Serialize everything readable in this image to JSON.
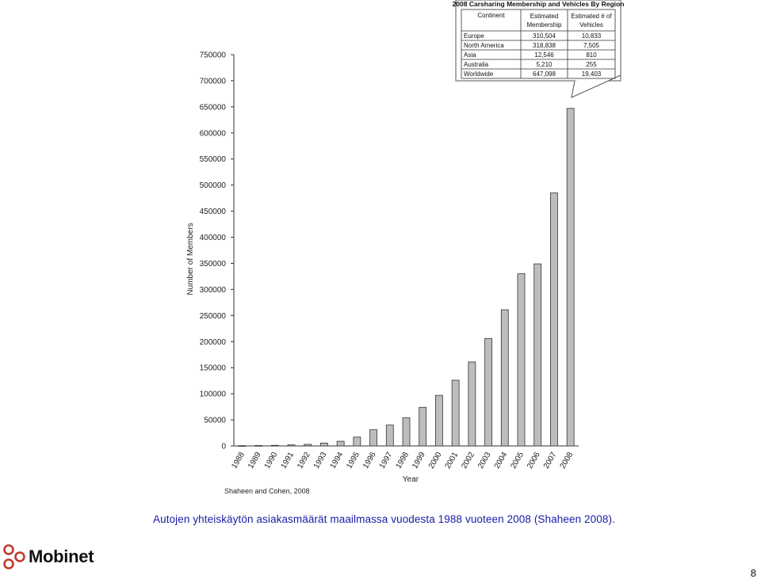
{
  "chart_data": {
    "type": "bar",
    "categories": [
      "1988",
      "1989",
      "1990",
      "1991",
      "1992",
      "1993",
      "1994",
      "1995",
      "1996",
      "1997",
      "1998",
      "1999",
      "2000",
      "2001",
      "2002",
      "2003",
      "2004",
      "2005",
      "2006",
      "2007",
      "2008"
    ],
    "values": [
      500,
      800,
      1200,
      2000,
      3000,
      5500,
      9000,
      17000,
      31000,
      40000,
      54000,
      74000,
      97000,
      126000,
      161000,
      206000,
      261000,
      330000,
      349000,
      485000,
      647098
    ],
    "xlabel": "Year",
    "ylabel": "Number of Members",
    "ylim": [
      0,
      750000
    ],
    "yticks": [
      0,
      50000,
      100000,
      150000,
      200000,
      250000,
      300000,
      350000,
      400000,
      450000,
      500000,
      550000,
      600000,
      650000,
      700000,
      750000
    ],
    "bar_color": "#bdbdbd",
    "source_note": "Shaheen and Cohen, 2008",
    "inset_table": {
      "title": "2008 Carsharing Membership and Vehicles By Region",
      "headers": [
        "Continent",
        "Estimated Membership",
        "Estimated # of Vehicles"
      ],
      "rows": [
        [
          "Europe",
          "310,504",
          "10,833"
        ],
        [
          "North America",
          "318,838",
          "7,505"
        ],
        [
          "Asia",
          "12,546",
          "810"
        ],
        [
          "Australia",
          "5,210",
          "255"
        ],
        [
          "Worldwide",
          "647,098",
          "19,403"
        ]
      ]
    }
  },
  "caption": "Autojen yhteiskäytön asiakasmäärät maailmassa vuodesta 1988 vuoteen 2008 (Shaheen 2008).",
  "logo": {
    "text": "Mobinet",
    "icon": "mobinet-logo-icon",
    "color": "#c0392b"
  },
  "page_number": "8"
}
